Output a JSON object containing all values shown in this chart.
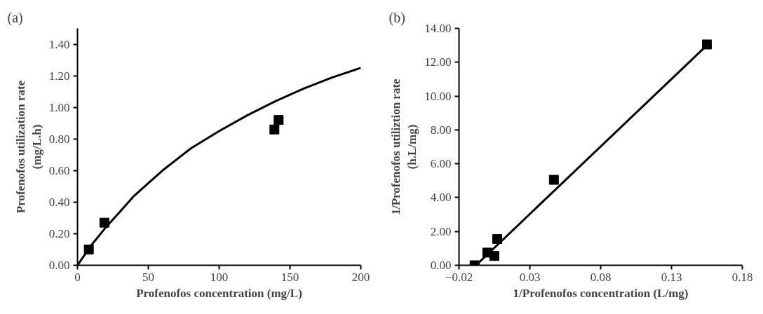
{
  "chart_data": [
    {
      "type": "scatter",
      "title": "(a)",
      "xlabel": "Profenofos concentration (mg/L)",
      "ylabel": "Profenofos utilization rate\n(mg/L.h)",
      "xlim": [
        0,
        200
      ],
      "ylim": [
        0,
        1.5
      ],
      "xticks": [
        0,
        50,
        100,
        150,
        200
      ],
      "yticks": [
        {
          "value": 0,
          "label": "0.00"
        },
        {
          "value": 0.2,
          "label": "0.20"
        },
        {
          "value": 0.4,
          "label": "0.40"
        },
        {
          "value": 0.6,
          "label": "0.60"
        },
        {
          "value": 0.8,
          "label": "0.80"
        },
        {
          "value": 1.0,
          "label": "1.00"
        },
        {
          "value": 1.2,
          "label": "1.20"
        },
        {
          "value": 1.4,
          "label": "1.40"
        }
      ],
      "grid": false,
      "series": [
        {
          "color": "#000000",
          "marker": "square",
          "x": [
            8,
            19,
            139,
            142
          ],
          "values": [
            0.1,
            0.27,
            0.86,
            0.92
          ]
        },
        {
          "type": "line",
          "color": "#000000",
          "marker": "none",
          "line_style": "solid",
          "x": [
            0,
            10,
            20,
            30,
            40,
            50,
            60,
            80,
            100,
            120,
            140,
            160,
            180,
            200
          ],
          "values": [
            0,
            0.13,
            0.24,
            0.34,
            0.44,
            0.52,
            0.6,
            0.74,
            0.85,
            0.95,
            1.04,
            1.12,
            1.19,
            1.25
          ]
        }
      ]
    },
    {
      "type": "scatter",
      "title": "(b)",
      "xlabel": "1/Profenofos concentration (L/mg)",
      "ylabel": "1/Profenofos utiliztion rate\n(h.L/mg)",
      "xlim": [
        -0.02,
        0.18
      ],
      "ylim": [
        0,
        14
      ],
      "xticks": [
        -0.02,
        0.03,
        0.08,
        0.13,
        0.18
      ],
      "yticks": [
        {
          "value": 0,
          "label": "0.00"
        },
        {
          "value": 2,
          "label": "2.00"
        },
        {
          "value": 4,
          "label": "4.00"
        },
        {
          "value": 6,
          "label": "6.00"
        },
        {
          "value": 8,
          "label": "8.00"
        },
        {
          "value": 10,
          "label": "10.00"
        },
        {
          "value": 12,
          "label": "12.00"
        },
        {
          "value": 14,
          "label": "14.00"
        }
      ],
      "grid": false,
      "series": [
        {
          "color": "#000000",
          "marker": "square",
          "x": [
            -0.009,
            0.0,
            0.005,
            0.007,
            0.047,
            0.155
          ],
          "values": [
            0.0,
            0.75,
            0.55,
            1.55,
            5.05,
            13.05
          ]
        },
        {
          "type": "line",
          "color": "#000000",
          "marker": "none",
          "line_style": "solid",
          "x": [
            -0.008,
            0.155
          ],
          "values": [
            0.0,
            13.0
          ]
        }
      ]
    }
  ]
}
